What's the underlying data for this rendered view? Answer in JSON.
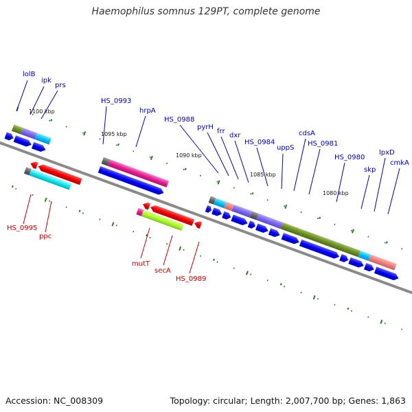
{
  "title": "Haemophilus somnus 129PT, complete genome",
  "footer": {
    "accession": "Accession: NC_008309",
    "summary": "Topology: circular; Length: 2,007,700 bp; Genes: 1,863"
  },
  "colors": {
    "forward_label": "#0000b0",
    "reverse_label": "#c00000",
    "backbone": "#8a8a8a",
    "tick": "#2a7a2a"
  },
  "scale_labels": [
    "1100 kbp",
    "1095 kbp",
    "1090 kbp",
    "1085 kbp",
    "1080 kbp"
  ],
  "forward_labels": [
    "lolB",
    "ipk",
    "prs",
    "HS_0993",
    "hrpA",
    "HS_0988",
    "pyrH",
    "frr",
    "dxr",
    "HS_0984",
    "uppS",
    "cdsA",
    "HS_0981",
    "HS_0980",
    "skp",
    "lpxD",
    "cmkA"
  ],
  "reverse_labels": [
    "HS_0995",
    "ppc",
    "mutT",
    "secA",
    "HS_0989"
  ]
}
